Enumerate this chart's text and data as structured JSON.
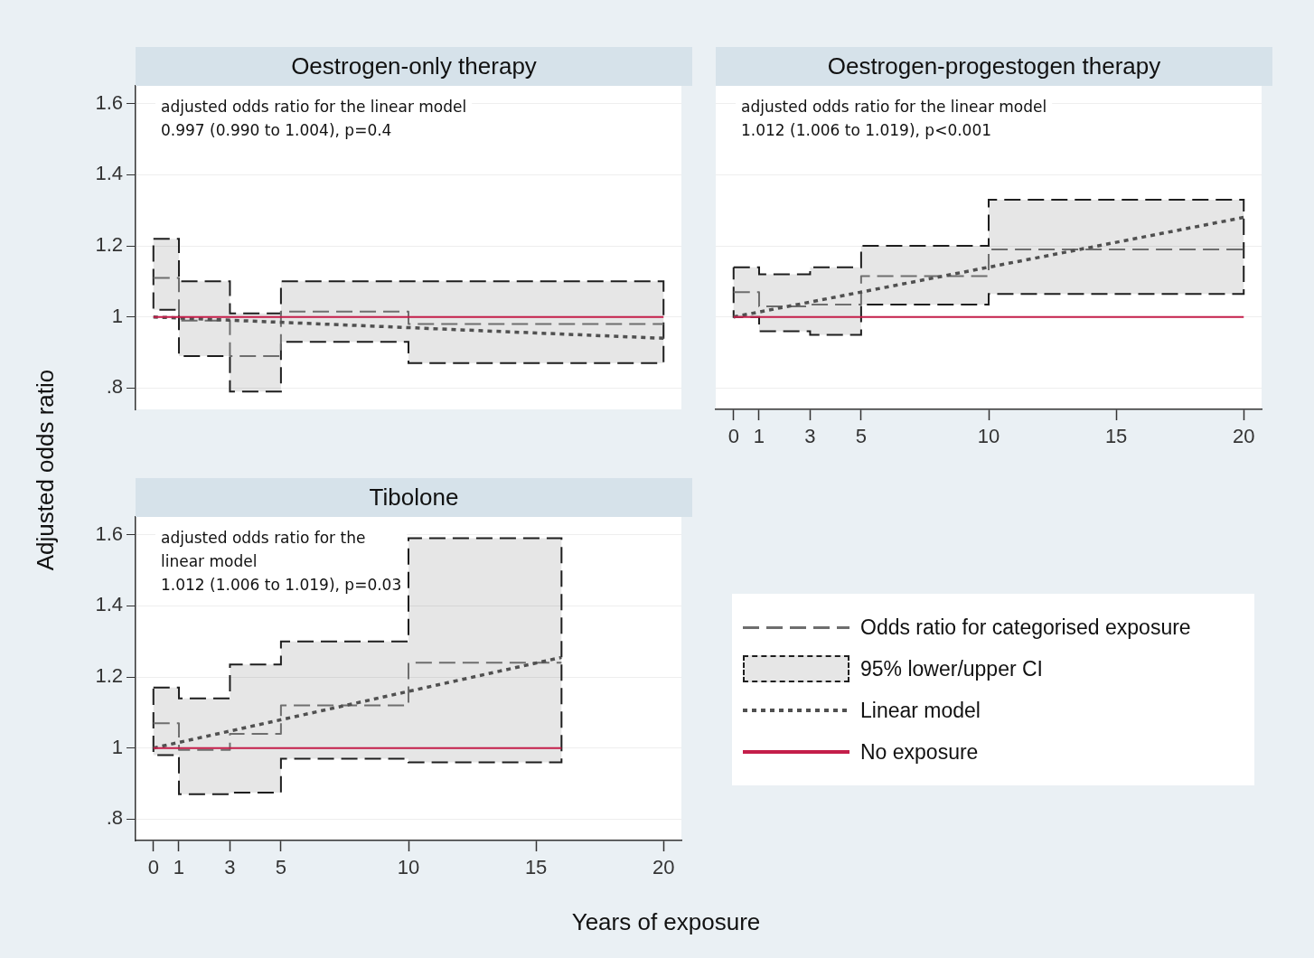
{
  "chart_data": [
    {
      "type": "step",
      "title": "Oestrogen-only therapy",
      "ylabel": "Adjusted odds ratio",
      "xlim": [
        -0.7,
        20.7
      ],
      "ylim": [
        0.74,
        1.65
      ],
      "xticks": [
        0,
        1,
        3,
        5,
        10,
        15,
        20
      ],
      "yticks": [
        {
          "value": 0.8,
          "label": ".8"
        },
        1,
        1.2,
        1.4,
        1.6
      ],
      "tick_labels": "y",
      "grid": "y",
      "annotations": [
        "adjusted odds ratio for the linear model",
        "0.997 (0.990 to 1.004), p=0.4"
      ],
      "series": [
        {
          "type": "step",
          "color": "#1e1e1e",
          "x": [
            0,
            1,
            3,
            5,
            10,
            20
          ],
          "values": [
            null,
            null,
            null,
            null,
            null,
            null
          ],
          "lower": [
            1.02,
            0.89,
            0.79,
            0.93,
            0.87,
            0.87
          ],
          "upper": [
            1.22,
            1.1,
            1.01,
            1.1,
            1.1,
            1.1
          ]
        },
        {
          "type": "step",
          "color": "#6e6e6e",
          "line_style": "dashed",
          "x": [
            0,
            1,
            3,
            5,
            10,
            20
          ],
          "values": [
            1.11,
            0.99,
            0.89,
            1.015,
            0.98,
            0.98
          ]
        },
        {
          "type": "line",
          "color": "#505050",
          "line_style": "dotted",
          "x": [
            0,
            20
          ],
          "values": [
            1,
            0.94
          ]
        },
        {
          "type": "line",
          "color": "#c41e4a",
          "line_style": "solid",
          "x": [
            0,
            20
          ],
          "values": [
            1,
            1
          ]
        }
      ]
    },
    {
      "type": "step",
      "title": "Oestrogen-progestogen therapy",
      "xlim": [
        -0.7,
        20.7
      ],
      "ylim": [
        0.74,
        1.65
      ],
      "xticks": [
        0,
        1,
        3,
        5,
        10,
        15,
        20
      ],
      "yticks": [
        {
          "value": 0.8,
          "label": null
        },
        {
          "value": 1,
          "label": null
        },
        {
          "value": 1.2,
          "label": null
        },
        {
          "value": 1.4,
          "label": null
        },
        {
          "value": 1.6,
          "label": null
        }
      ],
      "tick_labels": "x",
      "grid": "y",
      "annotations": [
        "adjusted odds ratio for the linear model",
        "1.012 (1.006 to 1.019), p<0.001"
      ],
      "series": [
        {
          "type": "step",
          "color": "#1e1e1e",
          "x": [
            0,
            1,
            3,
            5,
            10,
            20
          ],
          "values": [
            null,
            null,
            null,
            null,
            null,
            null
          ],
          "lower": [
            1.0,
            0.96,
            0.95,
            1.035,
            1.065,
            1.065
          ],
          "upper": [
            1.14,
            1.12,
            1.14,
            1.2,
            1.33,
            1.33
          ]
        },
        {
          "type": "step",
          "color": "#6e6e6e",
          "line_style": "dashed",
          "x": [
            0,
            1,
            3,
            5,
            10,
            20
          ],
          "values": [
            1.07,
            1.03,
            1.035,
            1.115,
            1.19,
            1.19
          ]
        },
        {
          "type": "line",
          "color": "#505050",
          "line_style": "dotted",
          "x": [
            0,
            20
          ],
          "values": [
            1,
            1.28
          ]
        },
        {
          "type": "line",
          "color": "#c41e4a",
          "line_style": "solid",
          "x": [
            0,
            20
          ],
          "values": [
            1,
            1
          ]
        }
      ]
    },
    {
      "type": "step",
      "title": "Tibolone",
      "xlabel": "Years of exposure",
      "xlim": [
        -0.7,
        20.7
      ],
      "ylim": [
        0.74,
        1.65
      ],
      "xticks": [
        0,
        1,
        3,
        5,
        10,
        15,
        20
      ],
      "yticks": [
        {
          "value": 0.8,
          "label": ".8"
        },
        1,
        1.2,
        1.4,
        1.6
      ],
      "grid": "y",
      "legend": "right",
      "annotations": [
        "adjusted odds ratio for the",
        "linear model",
        "1.012 (1.006 to 1.019), p=0.03"
      ],
      "series": [
        {
          "type": "step",
          "name": "95% lower/upper CI",
          "color": "#1e1e1e",
          "x": [
            0,
            1,
            3,
            5,
            10,
            16
          ],
          "values": [
            null,
            null,
            null,
            null,
            null,
            null
          ],
          "lower": [
            0.98,
            0.87,
            0.875,
            0.97,
            0.96,
            0.96
          ],
          "upper": [
            1.17,
            1.14,
            1.235,
            1.3,
            1.59,
            1.59
          ]
        },
        {
          "type": "step",
          "name": "Odds ratio for categorised exposure",
          "color": "#6e6e6e",
          "line_style": "dashed",
          "x": [
            0,
            1,
            3,
            5,
            10,
            16
          ],
          "values": [
            1.07,
            0.995,
            1.04,
            1.12,
            1.24,
            1.24
          ]
        },
        {
          "type": "line",
          "name": "Linear model",
          "color": "#505050",
          "line_style": "dotted",
          "x": [
            0,
            16
          ],
          "values": [
            1,
            1.255
          ]
        },
        {
          "type": "line",
          "name": "No exposure",
          "color": "#c41e4a",
          "line_style": "solid",
          "x": [
            0,
            16
          ],
          "values": [
            1,
            1
          ]
        }
      ]
    }
  ]
}
